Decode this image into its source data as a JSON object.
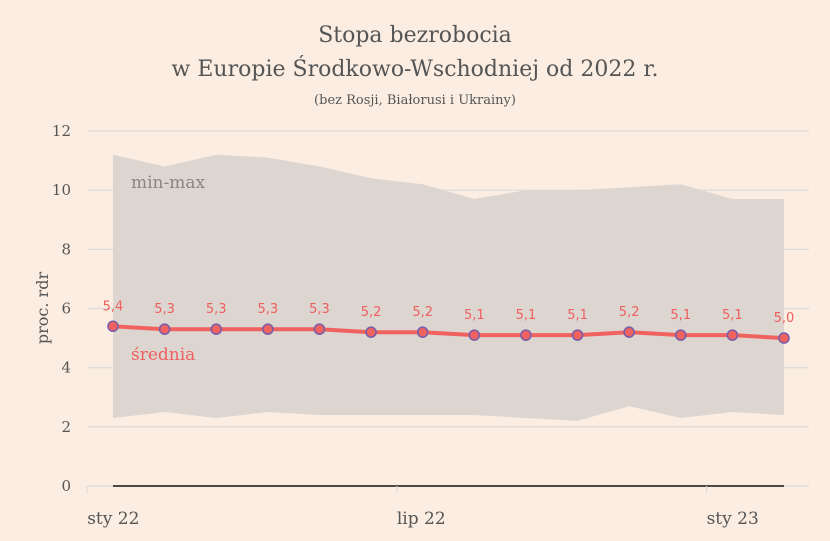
{
  "chart_data": {
    "type": "line",
    "title": "Stopa bezrobocia",
    "title_line2": "w Europie Środkowo-Wschodniej od 2022 r.",
    "subtitle": "(bez Rosji, Białorusi i Ukrainy)",
    "xlabel": "",
    "ylabel": "proc. rdr",
    "ylim": [
      0,
      12
    ],
    "yticks": [
      0,
      2,
      4,
      6,
      8,
      10,
      12
    ],
    "ytick_labels": [
      "0",
      "2",
      "4",
      "6",
      "8",
      "10",
      "12"
    ],
    "x_tick_labels": [
      {
        "label": "sty 22",
        "index": -0.5
      },
      {
        "label": "lip 22",
        "index": 5.5
      },
      {
        "label": "sty 23",
        "index": 11.5
      }
    ],
    "grid": true,
    "x": [
      "2022-01",
      "2022-02",
      "2022-03",
      "2022-04",
      "2022-05",
      "2022-06",
      "2022-07",
      "2022-08",
      "2022-09",
      "2022-10",
      "2022-11",
      "2022-12",
      "2023-01",
      "2023-02"
    ],
    "series": [
      {
        "name": "średnia",
        "kind": "line",
        "color": "#f0625f",
        "marker_edge_color": "#7b5ea8",
        "values": [
          5.4,
          5.3,
          5.3,
          5.3,
          5.3,
          5.2,
          5.2,
          5.1,
          5.1,
          5.1,
          5.2,
          5.1,
          5.1,
          5.0
        ],
        "data_labels": [
          "5,4",
          "5,3",
          "5,3",
          "5,3",
          "5,3",
          "5,2",
          "5,2",
          "5,1",
          "5,1",
          "5,1",
          "5,2",
          "5,1",
          "5,1",
          "5,0"
        ]
      },
      {
        "name": "min-max",
        "kind": "band",
        "color": "#ddd5d0",
        "max": [
          11.2,
          10.8,
          11.2,
          11.1,
          10.8,
          10.4,
          10.2,
          9.7,
          10.0,
          10.0,
          10.1,
          10.2,
          9.7,
          9.7
        ],
        "min": [
          2.3,
          2.5,
          2.3,
          2.5,
          2.4,
          2.4,
          2.4,
          2.4,
          2.3,
          2.2,
          2.7,
          2.3,
          2.5,
          2.4
        ]
      }
    ],
    "annotations": [
      {
        "text": "min-max",
        "series": "min-max"
      },
      {
        "text": "średnia",
        "series": "średnia"
      }
    ],
    "colors": {
      "background": "#fbede1",
      "gridline": "#dcdad8",
      "zero_line": "#333333",
      "text": "#555555"
    }
  }
}
